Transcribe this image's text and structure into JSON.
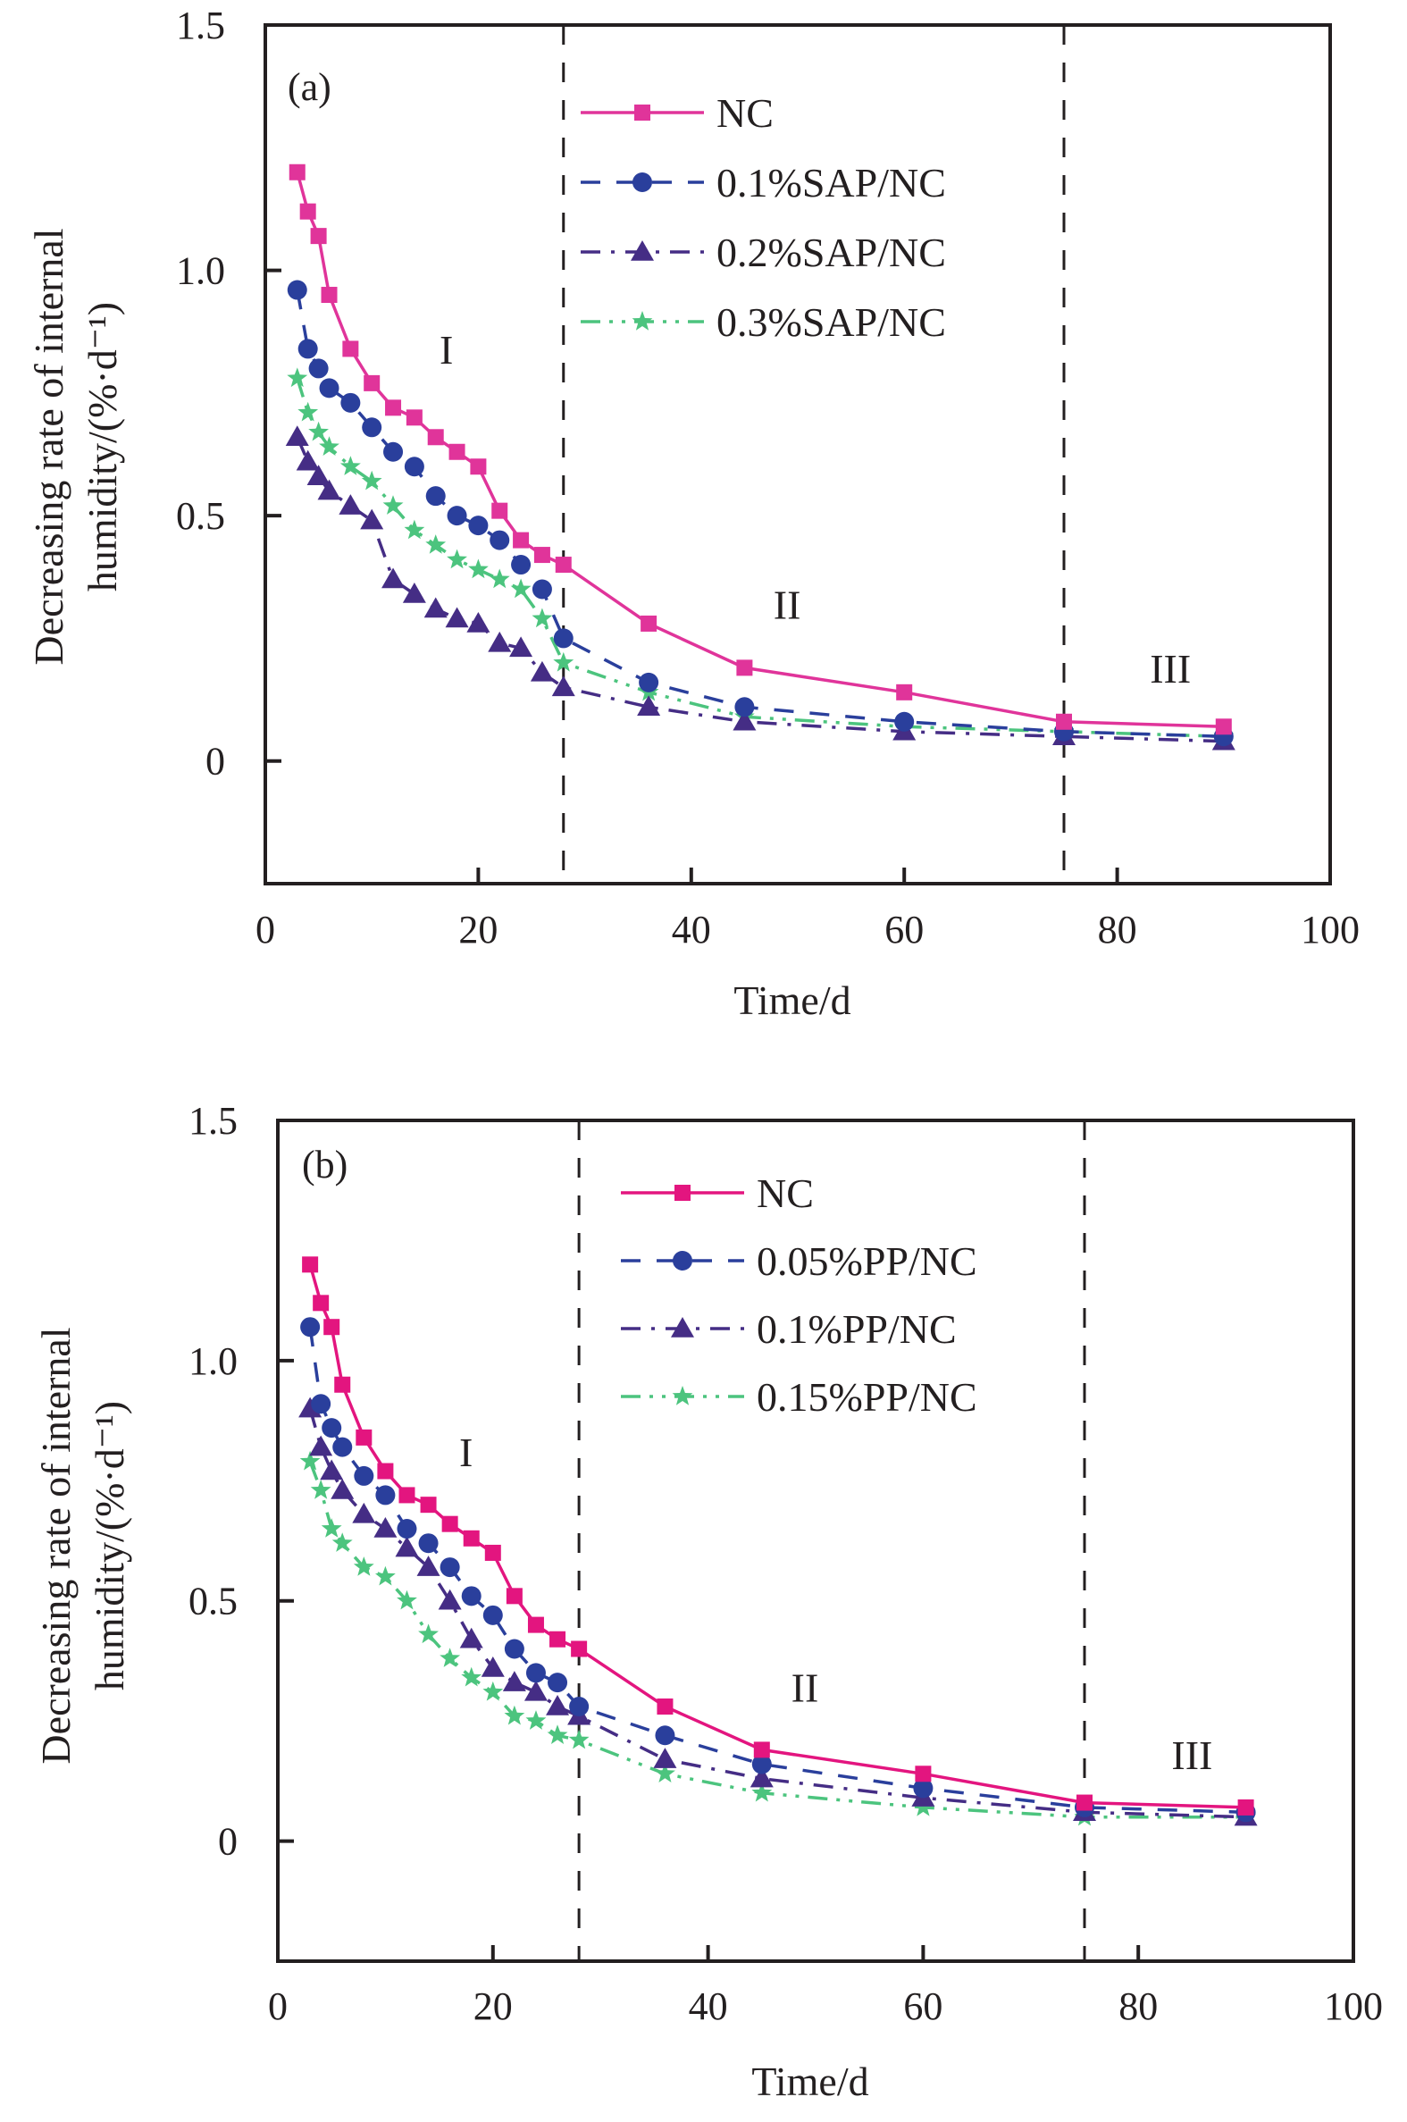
{
  "chart_data": [
    {
      "type": "line",
      "panel_label": "(a)",
      "xlabel": "Time/d",
      "ylabel_lines": [
        "Decreasing rate of internal",
        "humidity/(%·d⁻¹)"
      ],
      "xlim": [
        0,
        100
      ],
      "ylim": [
        -0.25,
        1.5
      ],
      "xticks": [
        0,
        20,
        40,
        60,
        80,
        100
      ],
      "xtick_labels": [
        "0",
        "20",
        "40",
        "60",
        "80",
        "100"
      ],
      "yticks": [
        0,
        0.5,
        1.0,
        1.5
      ],
      "ytick_labels": [
        "0",
        "0.5",
        "1.0",
        "1.5"
      ],
      "grid": false,
      "legend_position": "top-center",
      "stage_boundaries": [
        28,
        75
      ],
      "region_labels": [
        {
          "text": "I",
          "x": 17,
          "y": 0.81
        },
        {
          "text": "II",
          "x": 49,
          "y": 0.29
        },
        {
          "text": "III",
          "x": 85,
          "y": 0.16
        }
      ],
      "x": [
        3,
        4,
        5,
        6,
        8,
        10,
        12,
        14,
        16,
        18,
        20,
        22,
        24,
        26,
        28,
        36,
        45,
        60,
        75,
        90
      ],
      "series": [
        {
          "name": "NC",
          "color": "#E0349A",
          "marker": "square",
          "line": "solid",
          "values": [
            1.2,
            1.12,
            1.07,
            0.95,
            0.84,
            0.77,
            0.72,
            0.7,
            0.66,
            0.63,
            0.6,
            0.51,
            0.45,
            0.42,
            0.4,
            0.28,
            0.19,
            0.14,
            0.08,
            0.07
          ]
        },
        {
          "name": "0.1%SAP/NC",
          "color": "#2A3F9C",
          "marker": "circle",
          "line": "dashed",
          "values": [
            0.96,
            0.84,
            0.8,
            0.76,
            0.73,
            0.68,
            0.63,
            0.6,
            0.54,
            0.5,
            0.48,
            0.45,
            0.4,
            0.35,
            0.25,
            0.16,
            0.11,
            0.08,
            0.06,
            0.05
          ]
        },
        {
          "name": "0.2%SAP/NC",
          "color": "#452D85",
          "marker": "triangle",
          "line": "dashdot",
          "values": [
            0.66,
            0.61,
            0.58,
            0.55,
            0.52,
            0.49,
            0.37,
            0.34,
            0.31,
            0.29,
            0.28,
            0.24,
            0.23,
            0.18,
            0.15,
            0.11,
            0.08,
            0.06,
            0.05,
            0.04
          ]
        },
        {
          "name": "0.3%SAP/NC",
          "color": "#4CC47E",
          "marker": "star",
          "line": "dashdotdot",
          "values": [
            0.78,
            0.71,
            0.67,
            0.64,
            0.6,
            0.57,
            0.52,
            0.47,
            0.44,
            0.41,
            0.39,
            0.37,
            0.35,
            0.29,
            0.2,
            0.14,
            0.09,
            0.07,
            0.06,
            0.05
          ]
        }
      ]
    },
    {
      "type": "line",
      "panel_label": "(b)",
      "xlabel": "Time/d",
      "ylabel_lines": [
        "Decreasing rate of internal",
        "humidity/(%·d⁻¹)"
      ],
      "xlim": [
        0,
        100
      ],
      "ylim": [
        -0.25,
        1.5
      ],
      "xticks": [
        0,
        20,
        40,
        60,
        80,
        100
      ],
      "xtick_labels": [
        "0",
        "20",
        "40",
        "60",
        "80",
        "100"
      ],
      "yticks": [
        0,
        0.5,
        1.0,
        1.5
      ],
      "ytick_labels": [
        "0",
        "0.5",
        "1.0",
        "1.5"
      ],
      "grid": false,
      "legend_position": "top-center",
      "stage_boundaries": [
        28,
        75
      ],
      "region_labels": [
        {
          "text": "I",
          "x": 17.5,
          "y": 0.78
        },
        {
          "text": "II",
          "x": 49,
          "y": 0.29
        },
        {
          "text": "III",
          "x": 85,
          "y": 0.15
        }
      ],
      "x": [
        3,
        4,
        5,
        6,
        8,
        10,
        12,
        14,
        16,
        18,
        20,
        22,
        24,
        26,
        28,
        36,
        45,
        60,
        75,
        90
      ],
      "series": [
        {
          "name": "NC",
          "color": "#E3157F",
          "marker": "square",
          "line": "solid",
          "values": [
            1.2,
            1.12,
            1.07,
            0.95,
            0.84,
            0.77,
            0.72,
            0.7,
            0.66,
            0.63,
            0.6,
            0.51,
            0.45,
            0.42,
            0.4,
            0.28,
            0.19,
            0.14,
            0.08,
            0.07
          ]
        },
        {
          "name": "0.05%PP/NC",
          "color": "#2A3F9C",
          "marker": "circle",
          "line": "dashed",
          "values": [
            1.07,
            0.91,
            0.86,
            0.82,
            0.76,
            0.72,
            0.65,
            0.62,
            0.57,
            0.51,
            0.47,
            0.4,
            0.35,
            0.33,
            0.28,
            0.22,
            0.16,
            0.11,
            0.07,
            0.06
          ]
        },
        {
          "name": "0.1%PP/NC",
          "color": "#452D85",
          "marker": "triangle",
          "line": "dashdot",
          "values": [
            0.9,
            0.82,
            0.77,
            0.73,
            0.68,
            0.65,
            0.61,
            0.57,
            0.5,
            0.42,
            0.36,
            0.33,
            0.31,
            0.28,
            0.26,
            0.17,
            0.13,
            0.09,
            0.06,
            0.05
          ]
        },
        {
          "name": "0.15%PP/NC",
          "color": "#4CC47E",
          "marker": "star",
          "line": "dashdotdot",
          "values": [
            0.79,
            0.73,
            0.65,
            0.62,
            0.57,
            0.55,
            0.5,
            0.43,
            0.38,
            0.34,
            0.31,
            0.26,
            0.25,
            0.22,
            0.21,
            0.14,
            0.1,
            0.07,
            0.05,
            0.05
          ]
        }
      ]
    }
  ]
}
